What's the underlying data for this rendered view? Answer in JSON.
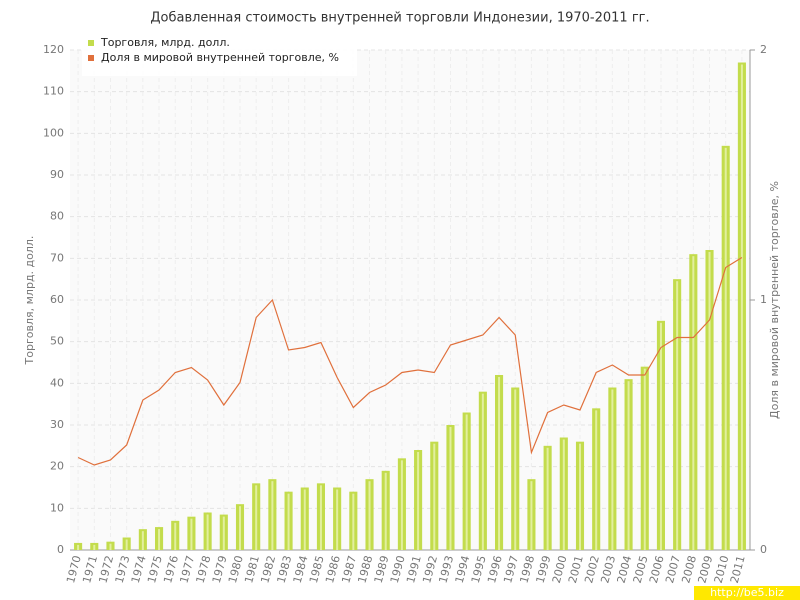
{
  "chart_data": {
    "type": "bar_line",
    "title": "Добавленная стоимость внутренней торговли Индонезии, 1970-2011 гг.",
    "ylabel": "Торговля, млрд. долл.",
    "y2label": "Доля в мировой внутренней торговле, %",
    "watermark": "http://be5.biz",
    "categories": [
      "1970",
      "1971",
      "1972",
      "1973",
      "1974",
      "1975",
      "1976",
      "1977",
      "1978",
      "1979",
      "1980",
      "1981",
      "1982",
      "1983",
      "1984",
      "1985",
      "1986",
      "1987",
      "1988",
      "1989",
      "1990",
      "1991",
      "1992",
      "1993",
      "1994",
      "1995",
      "1996",
      "1997",
      "1998",
      "1999",
      "2000",
      "2001",
      "2002",
      "2003",
      "2004",
      "2005",
      "2006",
      "2007",
      "2008",
      "2009",
      "2010",
      "2011"
    ],
    "series": [
      {
        "name": "Торговля, млрд. долл.",
        "color": "#c3dc4c",
        "type": "bar",
        "values": [
          1.7,
          1.7,
          2,
          3,
          5,
          5.5,
          7,
          8,
          9,
          8.5,
          11,
          16,
          17,
          14,
          15,
          16,
          15,
          14,
          17,
          19,
          22,
          24,
          26,
          30,
          33,
          38,
          42,
          39,
          17,
          25,
          27,
          26,
          34,
          39,
          41,
          44,
          55,
          65,
          71,
          72,
          97,
          117
        ]
      },
      {
        "name": "Доля в мировой внутренней торговле, %",
        "color": "#e0703c",
        "type": "line",
        "axis": "y2",
        "values": [
          0.37,
          0.34,
          0.36,
          0.42,
          0.6,
          0.64,
          0.71,
          0.73,
          0.68,
          0.58,
          0.67,
          0.93,
          1.0,
          0.8,
          0.81,
          0.83,
          0.69,
          0.57,
          0.63,
          0.66,
          0.71,
          0.72,
          0.71,
          0.82,
          0.84,
          0.86,
          0.93,
          0.86,
          0.39,
          0.55,
          0.58,
          0.56,
          0.71,
          0.74,
          0.7,
          0.7,
          0.81,
          0.85,
          0.85,
          0.92,
          1.13,
          1.17
        ]
      }
    ],
    "ylim": [
      0,
      120
    ],
    "yticks": [
      0,
      10,
      20,
      30,
      40,
      50,
      60,
      70,
      80,
      90,
      100,
      110,
      120
    ],
    "y2lim": [
      0,
      2
    ],
    "y2ticks": [
      0,
      1,
      2
    ],
    "grid": true,
    "legend": "top-left"
  }
}
